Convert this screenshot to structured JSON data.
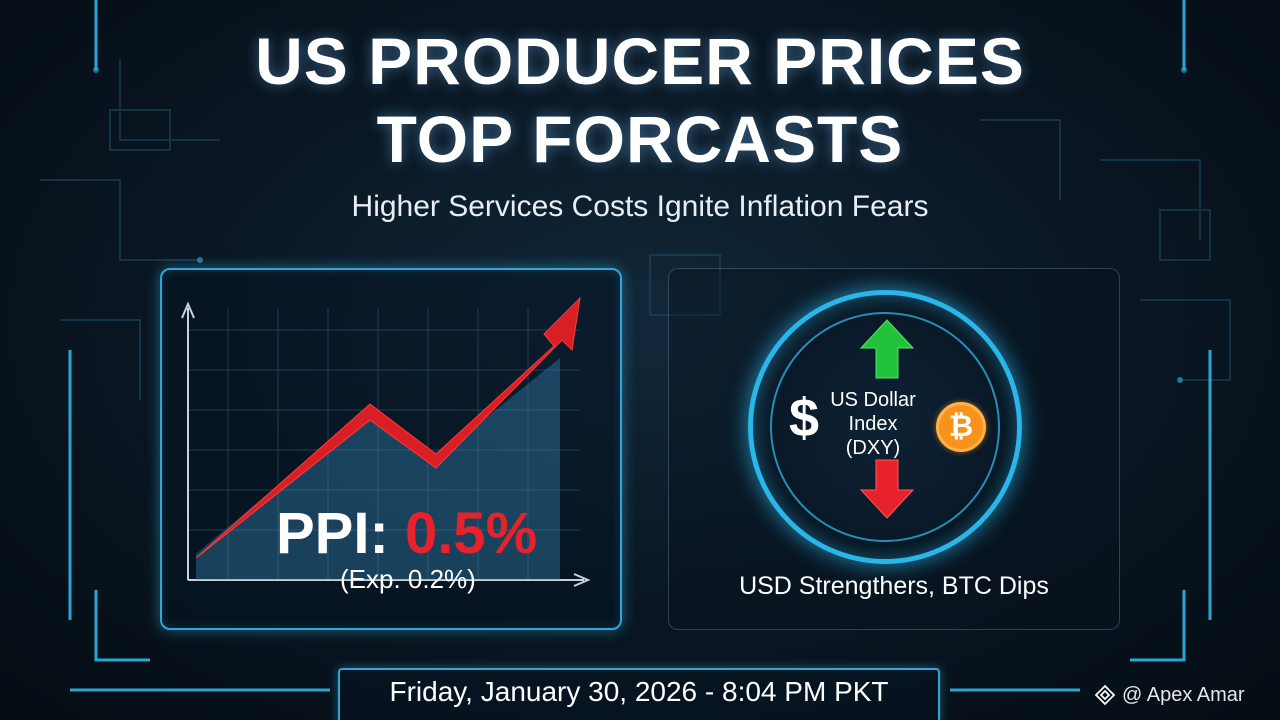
{
  "title": {
    "line1": "US PRODUCER PRICES",
    "line2": "TOP FORCASTS"
  },
  "subtitle": "Higher Services Costs Ignite Inflation Fears",
  "ppi": {
    "label": "PPI:",
    "value": "0.5%",
    "expected": "(Exp. 0.2%)"
  },
  "dxy": {
    "symbol": "$",
    "line1": "US Dollar",
    "line2": "Index",
    "line3": "(DXY)",
    "btc_symbol": "₿"
  },
  "caption": "USD Strengthers, BTC Dips",
  "date": "Friday, January 30, 2026 - 8:04 PM PKT",
  "watermark": "@ Apex Amar",
  "icons": {
    "rising_arrow": "trend-up-arrow-icon",
    "up_arrow": "arrow-up-icon",
    "down_arrow": "arrow-down-icon",
    "coin": "bitcoin-icon",
    "logo": "diamond-logo-icon"
  },
  "colors": {
    "accent_blue": "#2bb6ea",
    "up_green": "#22c33a",
    "down_red": "#e8222a",
    "bitcoin_orange": "#f7931a"
  }
}
